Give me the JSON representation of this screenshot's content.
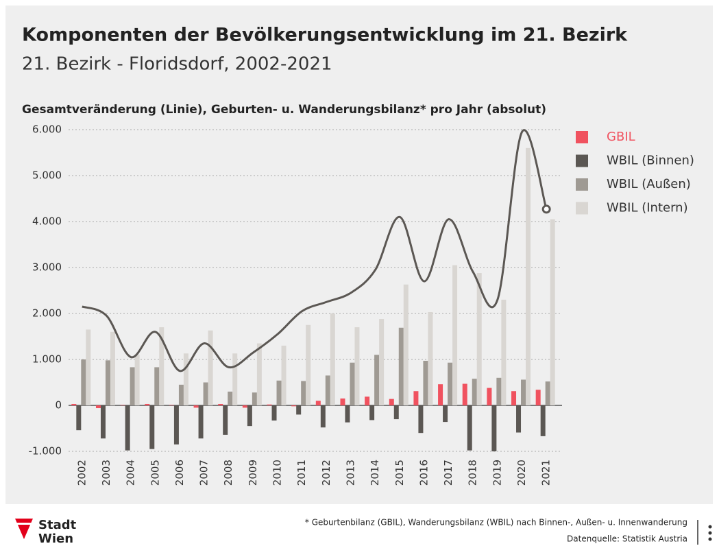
{
  "chart_data": {
    "type": "bar",
    "title": "Komponenten der Bevölkerungsentwicklung im 21. Bezirk",
    "subtitle": "21. Bezirk - Floridsdorf, 2002-2021",
    "y_label": "Gesamtveränderung (Linie), Geburten- u. Wanderungsbilanz* pro Jahr (absolut)",
    "categories": [
      "2002",
      "2003",
      "2004",
      "2005",
      "2006",
      "2007",
      "2008",
      "2009",
      "2010",
      "2011",
      "2012",
      "2013",
      "2014",
      "2015",
      "2016",
      "2017",
      "2018",
      "2019",
      "2020",
      "2021"
    ],
    "series": [
      {
        "name": "GBIL",
        "color": "#f0525f",
        "values": [
          30,
          -60,
          10,
          30,
          10,
          -50,
          30,
          -50,
          20,
          -20,
          100,
          150,
          190,
          140,
          310,
          460,
          470,
          380,
          310,
          340
        ]
      },
      {
        "name": "WBIL (Binnen)",
        "color": "#5b5753",
        "values": [
          -540,
          -720,
          -980,
          -950,
          -850,
          -720,
          -640,
          -450,
          -330,
          -200,
          -480,
          -370,
          -320,
          -300,
          -600,
          -360,
          -980,
          -1000,
          -590,
          -670
        ]
      },
      {
        "name": "WBIL (Außen)",
        "color": "#9f9a93",
        "values": [
          1000,
          980,
          830,
          830,
          450,
          500,
          300,
          280,
          540,
          530,
          650,
          930,
          1100,
          1690,
          970,
          930,
          580,
          600,
          560,
          520
        ]
      },
      {
        "name": "WBIL (Intern)",
        "color": "#d9d6d2",
        "values": [
          1650,
          1600,
          1100,
          1700,
          1130,
          1630,
          1130,
          1350,
          1300,
          1750,
          2000,
          1700,
          1880,
          2630,
          2030,
          3050,
          2880,
          2300,
          5600,
          4050
        ]
      }
    ],
    "line": {
      "color": "#5b5753",
      "values": [
        2150,
        1950,
        1050,
        1600,
        750,
        1350,
        830,
        1150,
        1550,
        2050,
        2250,
        2450,
        2950,
        4100,
        2700,
        4050,
        2900,
        2300,
        5950,
        4270
      ]
    },
    "ylim": [
      -1100,
      6100
    ],
    "yticks": [
      {
        "value": -1000,
        "label": "-1.000"
      },
      0,
      {
        "value": 1000,
        "label": "1.000"
      },
      {
        "value": 2000,
        "label": "2.000"
      },
      {
        "value": 3000,
        "label": "3.000"
      },
      {
        "value": 4000,
        "label": "4.000"
      },
      {
        "value": 5000,
        "label": "5.000"
      },
      {
        "value": 6000,
        "label": "6.000"
      }
    ],
    "grid": true
  },
  "footer": {
    "logo": [
      "Stadt",
      "Wien"
    ],
    "note": "* Geburtenbilanz (GBIL), Wanderungsbilanz (WBIL) nach Binnen-, Außen- u. Innenwanderung",
    "source": "Datenquelle: Statistik Austria"
  }
}
